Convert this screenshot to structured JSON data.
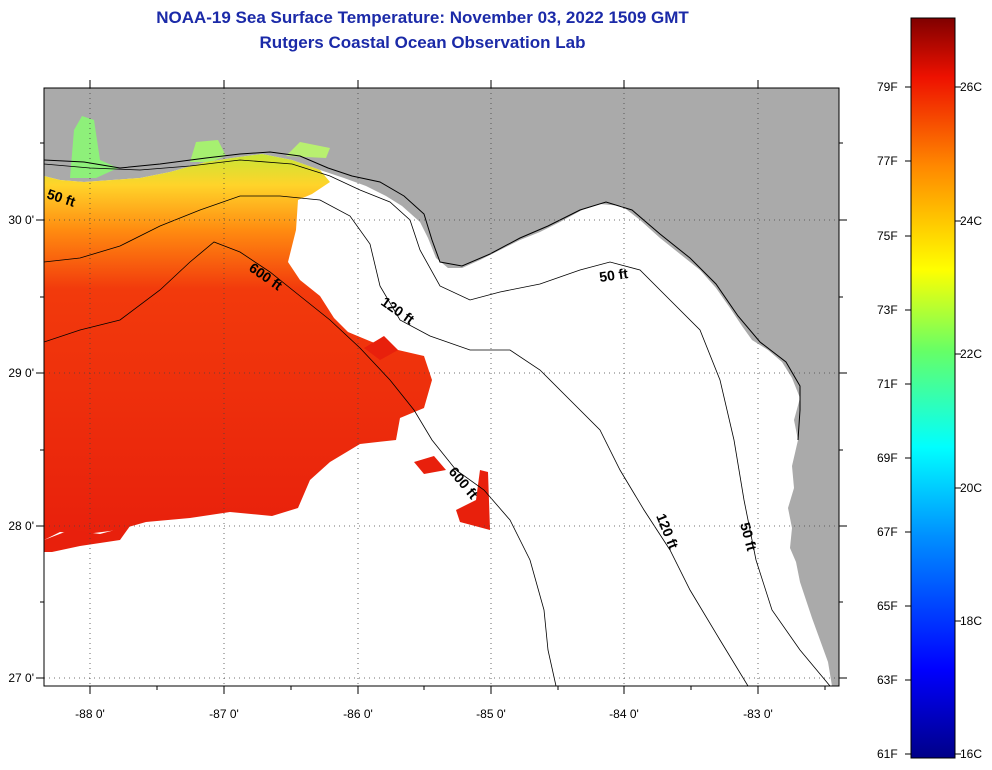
{
  "title": "NOAA-19 Sea Surface Temperature:  November 03, 2022 1509 GMT",
  "subtitle": "Rutgers Coastal Ocean Observation Lab",
  "map": {
    "lon_ticks": [
      "-88 0'",
      "-87 0'",
      "-86 0'",
      "-85 0'",
      "-84 0'",
      "-83 0'"
    ],
    "lat_ticks": [
      "30 0'",
      "29 0'",
      "28 0'",
      "27 0'"
    ],
    "isobath_labels": [
      "50 ft",
      "600 ft",
      "120 ft",
      "50 ft",
      "600 ft",
      "120 ft",
      "50 ft"
    ],
    "colors": {
      "land": "#aaaaaa",
      "ocean": "#ffffff"
    }
  },
  "colorbar": {
    "fahrenheit": [
      "79F",
      "77F",
      "75F",
      "73F",
      "71F",
      "69F",
      "67F",
      "65F",
      "63F",
      "61F"
    ],
    "celsius": [
      "26C",
      "24C",
      "22C",
      "20C",
      "18C",
      "16C"
    ]
  }
}
